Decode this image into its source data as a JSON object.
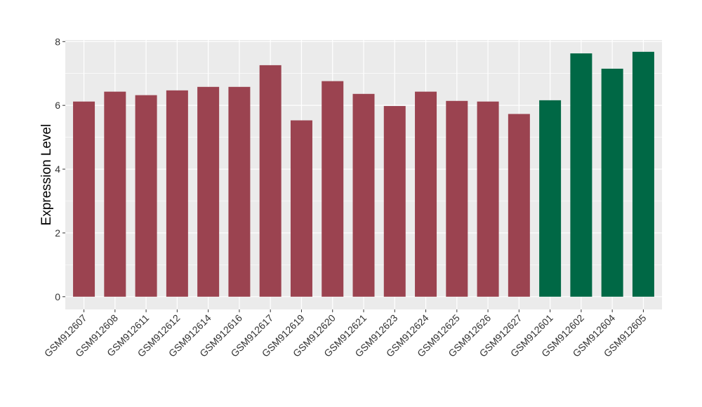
{
  "chart_data": {
    "type": "bar",
    "title": "",
    "xlabel": "",
    "ylabel": "Expression Level",
    "ylim": [
      -0.4,
      8.05
    ],
    "yticks": [
      0,
      2,
      4,
      6,
      8
    ],
    "grid": true,
    "legend": "none",
    "colors": {
      "group_a": "#9b4350",
      "group_b": "#006845",
      "panel_bg": "#ebebeb",
      "grid": "#ffffff"
    },
    "categories": [
      "GSM912607",
      "GSM912608",
      "GSM912611",
      "GSM912612",
      "GSM912614",
      "GSM912616",
      "GSM912617",
      "GSM912619",
      "GSM912620",
      "GSM912621",
      "GSM912623",
      "GSM912624",
      "GSM912625",
      "GSM912626",
      "GSM912627",
      "GSM912601",
      "GSM912602",
      "GSM912604",
      "GSM912605"
    ],
    "values": [
      6.12,
      6.43,
      6.32,
      6.47,
      6.58,
      6.58,
      7.26,
      5.53,
      6.76,
      6.36,
      5.98,
      6.43,
      6.14,
      6.12,
      5.73,
      6.16,
      7.63,
      7.15,
      7.68
    ],
    "groups": [
      "a",
      "a",
      "a",
      "a",
      "a",
      "a",
      "a",
      "a",
      "a",
      "a",
      "a",
      "a",
      "a",
      "a",
      "a",
      "b",
      "b",
      "b",
      "b"
    ]
  }
}
